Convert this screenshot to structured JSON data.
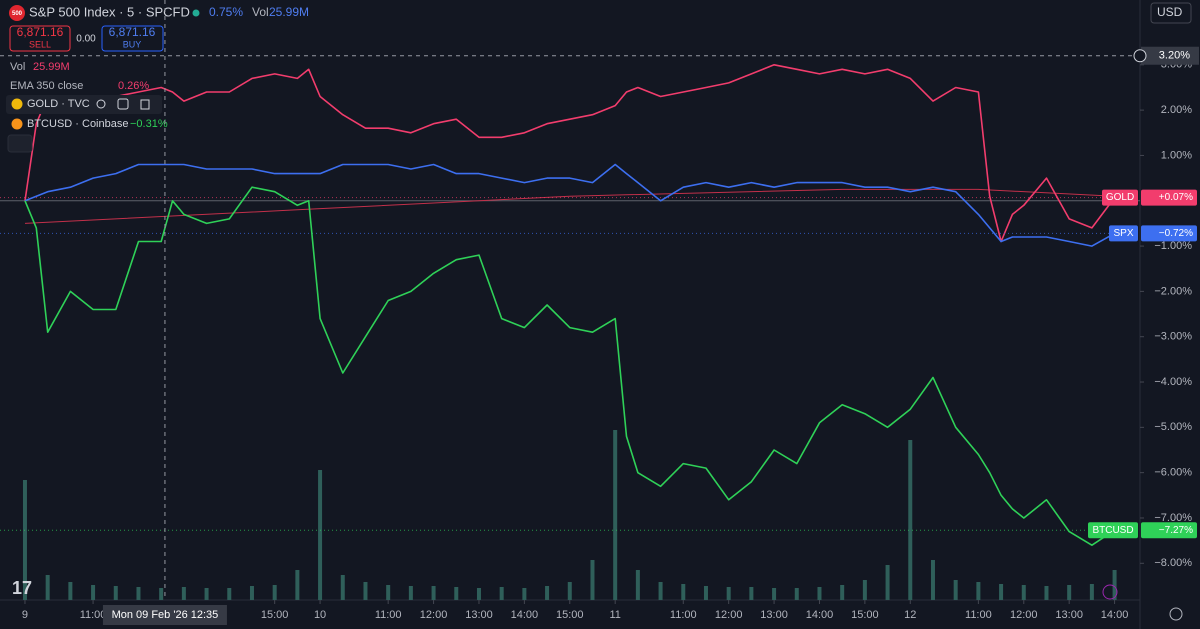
{
  "header": {
    "logo": "500",
    "symbol": "S&P 500 Index · 5 · SPCFD",
    "change": "0.75%",
    "vol_label": "Vol",
    "vol_value": "25.99M",
    "sell_price": "6,871.16",
    "sell": "SELL",
    "spread": "0.00",
    "buy_price": "6,871.16",
    "buy": "BUY",
    "volume_row_label": "Vol",
    "volume_row_value": "25.99M",
    "ema_label": "EMA 350 close",
    "ema_value": "0.26%",
    "gold_label": "GOLD · TVC",
    "btc_label": "BTCUSD · Coinbase",
    "btc_value": "−0.31%",
    "currency": "USD"
  },
  "chart_data": {
    "type": "line",
    "x": [
      0,
      0.25,
      0.5,
      1,
      1.5,
      2,
      2.5,
      3,
      3.25,
      3.5,
      4,
      4.5,
      5,
      5.5,
      6,
      6.25,
      6.5,
      7,
      7.5,
      8,
      8.5,
      9,
      9.5,
      10,
      10.5,
      11,
      11.5,
      12,
      12.5,
      13,
      13.25,
      13.5,
      14,
      14.5,
      15,
      15.5,
      16,
      16.5,
      17,
      17.5,
      18,
      18.5,
      19,
      19.5,
      20,
      20.5,
      21,
      21.25,
      21.5,
      21.75,
      22,
      22.5,
      23,
      23.5,
      24
    ],
    "series": [
      {
        "name": "GOLD",
        "color": "#f23d6d",
        "last_label": "+0.07%",
        "values": [
          0,
          1.7,
          2.3,
          2.3,
          2.1,
          2.3,
          2.4,
          2.5,
          2.4,
          2.2,
          2.4,
          2.4,
          2.7,
          2.8,
          2.7,
          2.9,
          2.3,
          1.9,
          1.6,
          1.6,
          1.5,
          1.7,
          1.8,
          1.4,
          1.4,
          1.5,
          1.7,
          1.8,
          1.9,
          2.1,
          2.4,
          2.5,
          2.3,
          2.4,
          2.5,
          2.6,
          2.8,
          3.0,
          2.9,
          2.8,
          2.9,
          2.8,
          2.9,
          2.7,
          2.2,
          2.5,
          2.4,
          0.1,
          -0.9,
          -0.3,
          -0.1,
          0.5,
          -0.4,
          -0.6,
          0.07
        ]
      },
      {
        "name": "SPX",
        "color": "#3d6ff0",
        "last_label": "−0.72%",
        "values": [
          0,
          0.1,
          0.2,
          0.3,
          0.5,
          0.6,
          0.8,
          0.8,
          0.8,
          0.8,
          0.7,
          0.7,
          0.7,
          0.6,
          0.6,
          0.6,
          0.6,
          0.8,
          0.8,
          0.8,
          0.7,
          0.8,
          0.6,
          0.6,
          0.5,
          0.4,
          0.5,
          0.5,
          0.4,
          0.8,
          0.6,
          0.4,
          0.0,
          0.3,
          0.4,
          0.3,
          0.4,
          0.3,
          0.4,
          0.4,
          0.4,
          0.3,
          0.3,
          0.2,
          0.3,
          0.2,
          -0.3,
          -0.6,
          -0.9,
          -0.8,
          -0.8,
          -0.8,
          -0.9,
          -1.0,
          -0.72
        ]
      },
      {
        "name": "BTCUSD",
        "color": "#2fd158",
        "last_label": "−7.27%",
        "values": [
          0,
          -0.6,
          -2.9,
          -2.0,
          -2.4,
          -2.4,
          -0.9,
          -0.9,
          0.0,
          -0.3,
          -0.5,
          -0.4,
          0.3,
          0.2,
          -0.1,
          0.0,
          -2.6,
          -3.8,
          -3.0,
          -2.2,
          -2.0,
          -1.6,
          -1.3,
          -1.2,
          -2.6,
          -2.8,
          -2.3,
          -2.8,
          -2.9,
          -2.6,
          -5.2,
          -6.0,
          -6.3,
          -5.8,
          -5.9,
          -6.6,
          -6.2,
          -5.5,
          -5.8,
          -4.9,
          -4.5,
          -4.7,
          -5.0,
          -4.6,
          -3.9,
          -5.0,
          -5.6,
          -6.0,
          -6.5,
          -6.8,
          -7.0,
          -6.6,
          -7.3,
          -7.6,
          -7.27
        ]
      }
    ],
    "ema": {
      "color": "#c2304a",
      "x": [
        0,
        6,
        12,
        18,
        21,
        24
      ],
      "values": [
        -0.5,
        -0.2,
        0.1,
        0.25,
        0.25,
        0.1
      ]
    },
    "volume": {
      "color": "#2f5f5a",
      "x": [
        0,
        0.5,
        1,
        1.5,
        2,
        2.5,
        3,
        3.5,
        4,
        4.5,
        5,
        5.5,
        6,
        6.5,
        7,
        7.5,
        8,
        8.5,
        9,
        9.5,
        10,
        10.5,
        11,
        11.5,
        12,
        12.5,
        13,
        13.5,
        14,
        14.5,
        15,
        15.5,
        16,
        16.5,
        17,
        17.5,
        18,
        18.5,
        19,
        19.5,
        20,
        20.5,
        21,
        21.5,
        22,
        22.5,
        23,
        23.5,
        24
      ],
      "values": [
        120,
        25,
        18,
        15,
        14,
        13,
        12,
        13,
        12,
        12,
        14,
        15,
        30,
        130,
        25,
        18,
        15,
        14,
        14,
        13,
        12,
        13,
        12,
        14,
        18,
        40,
        170,
        30,
        18,
        16,
        14,
        13,
        13,
        12,
        12,
        13,
        15,
        20,
        35,
        160,
        40,
        20,
        18,
        16,
        15,
        14,
        15,
        16,
        30
      ]
    },
    "xlim": [
      -0.55,
      24.56
    ],
    "ylim": [
      -8.81,
      4.43
    ],
    "xticks": [
      {
        "value": 0,
        "label": "9"
      },
      {
        "value": 1.5,
        "label": "11:00"
      },
      {
        "value": 5.5,
        "label": "15:00"
      },
      {
        "value": 6.5,
        "label": "10"
      },
      {
        "value": 8,
        "label": "11:00"
      },
      {
        "value": 9,
        "label": "12:00"
      },
      {
        "value": 10,
        "label": "13:00"
      },
      {
        "value": 11,
        "label": "14:00"
      },
      {
        "value": 12,
        "label": "15:00"
      },
      {
        "value": 13,
        "label": "11"
      },
      {
        "value": 14.5,
        "label": "11:00"
      },
      {
        "value": 15.5,
        "label": "12:00"
      },
      {
        "value": 16.5,
        "label": "13:00"
      },
      {
        "value": 17.5,
        "label": "14:00"
      },
      {
        "value": 18.5,
        "label": "15:00"
      },
      {
        "value": 19.5,
        "label": "12"
      },
      {
        "value": 21,
        "label": "11:00"
      },
      {
        "value": 22,
        "label": "12:00"
      },
      {
        "value": 23,
        "label": "13:00"
      },
      {
        "value": 24,
        "label": "14:00"
      }
    ],
    "yticks": [
      {
        "value": 3,
        "label": "3.00%"
      },
      {
        "value": 2,
        "label": "2.00%"
      },
      {
        "value": 1,
        "label": "1.00%"
      },
      {
        "value": -1,
        "label": "−1.00%"
      },
      {
        "value": -2,
        "label": "−2.00%"
      },
      {
        "value": -3,
        "label": "−3.00%"
      },
      {
        "value": -4,
        "label": "−4.00%"
      },
      {
        "value": -5,
        "label": "−5.00%"
      },
      {
        "value": -6,
        "label": "−6.00%"
      },
      {
        "value": -7,
        "label": "−7.00%"
      },
      {
        "value": -8,
        "label": "−8.00%"
      }
    ],
    "crosshair": {
      "x": 3.083,
      "x_label": "Mon 09 Feb '26  12:35",
      "y": 3.2,
      "y_label": "3.20%"
    }
  }
}
